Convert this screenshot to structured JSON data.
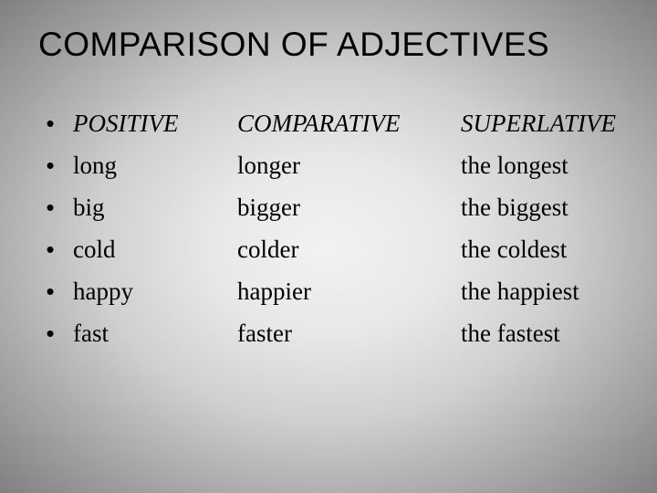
{
  "title": "COMPARISON OF ADJECTIVES",
  "headers": {
    "positive": "POSITIVE",
    "comparative": "COMPARATIVE",
    "superlative": "SUPERLATIVE"
  },
  "rows": [
    {
      "positive": "long",
      "comparative": "longer",
      "superlative": "the longest"
    },
    {
      "positive": "big",
      "comparative": "bigger",
      "superlative": "the biggest"
    },
    {
      "positive": "cold",
      "comparative": "colder",
      "superlative": "the coldest"
    },
    {
      "positive": "happy",
      "comparative": "happier",
      "superlative": "the happiest"
    },
    {
      "positive": "fast",
      "comparative": "faster",
      "superlative": "the fastest"
    }
  ],
  "bullet_char": "•",
  "colors": {
    "text": "#000000",
    "bg_center": "#f2f2f2",
    "bg_edge": "#808080"
  },
  "fonts": {
    "title_family": "Arial",
    "title_size_pt": 28,
    "body_family": "Times New Roman",
    "body_size_pt": 20
  }
}
